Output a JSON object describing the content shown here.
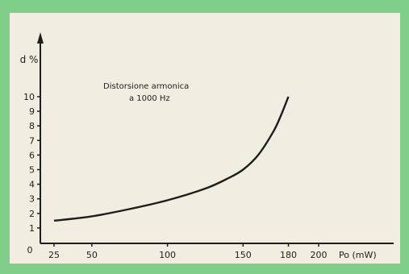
{
  "chart_data": {
    "type": "line",
    "title_line1": "Distorsione  armonica",
    "title_line2": "a 1000 Hz",
    "ylabel": "d %",
    "xlabel": "Po (mW)",
    "x_ticks": [
      "25",
      "50",
      "100",
      "150",
      "180",
      "200"
    ],
    "x_tick_values": [
      25,
      50,
      100,
      150,
      180,
      200
    ],
    "y_ticks": [
      "1",
      "2",
      "3",
      "4",
      "5",
      "6",
      "7",
      "8",
      "9",
      "10"
    ],
    "y_tick_values": [
      1,
      2,
      3,
      4,
      5,
      6,
      7,
      8,
      9,
      10
    ],
    "origin_label": "0",
    "xlim": [
      0,
      240
    ],
    "ylim": [
      0,
      10
    ],
    "grid": false,
    "series": [
      {
        "x": [
          25,
          50,
          75,
          100,
          125,
          140,
          150,
          160,
          170,
          175,
          180
        ],
        "y": [
          1.5,
          1.8,
          2.3,
          2.9,
          3.7,
          4.4,
          5.0,
          6.0,
          7.6,
          8.7,
          10.0
        ]
      }
    ]
  }
}
